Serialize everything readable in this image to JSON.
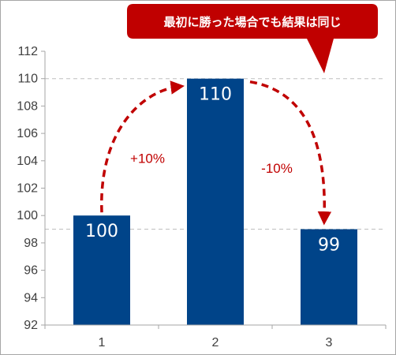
{
  "chart_data": {
    "type": "bar",
    "categories": [
      "1",
      "2",
      "3"
    ],
    "values": [
      100,
      110,
      99
    ],
    "data_labels": [
      "100",
      "110",
      "99"
    ],
    "ylim": [
      92,
      112
    ],
    "y_ticks": [
      92,
      94,
      96,
      98,
      100,
      102,
      104,
      106,
      108,
      110,
      112
    ],
    "grid": false,
    "reference_lines": [
      110,
      99
    ],
    "annotations": [
      {
        "text": "+10%",
        "from": "1",
        "to": "2",
        "color": "#c00000"
      },
      {
        "text": "-10%",
        "from": "2",
        "to": "3",
        "color": "#c00000"
      }
    ],
    "callout": {
      "text": "最初に勝った場合でも結果は同じ",
      "color": "#c00000"
    },
    "colors": {
      "bar": "#004489",
      "annotation": "#c00000",
      "reference_line": "#bfbfbf"
    }
  }
}
